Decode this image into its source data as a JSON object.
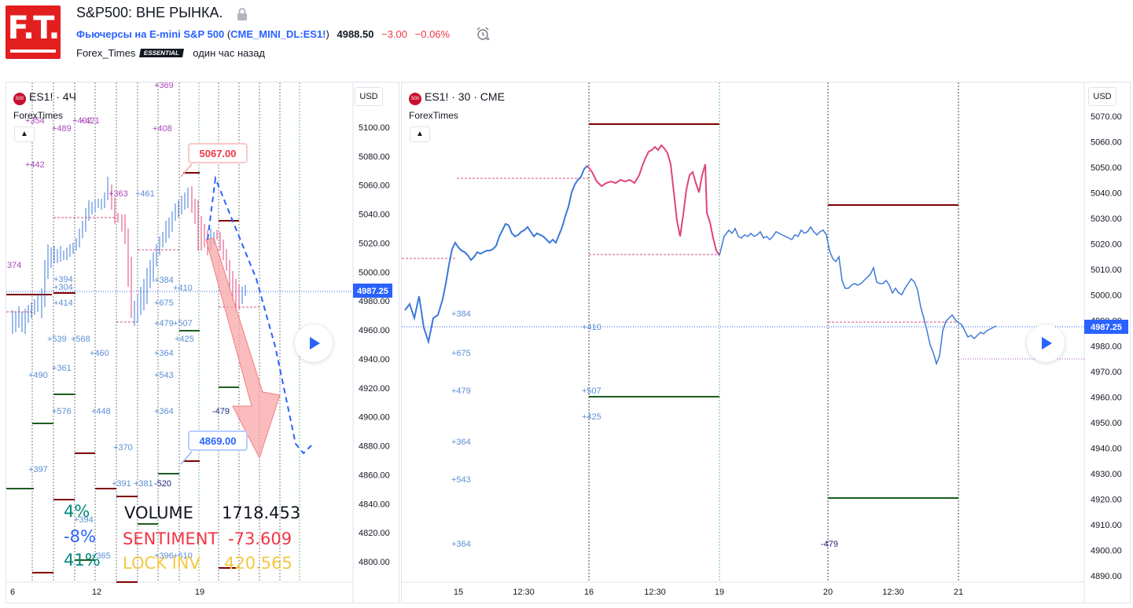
{
  "header": {
    "logo_text": "F.T.",
    "title": "S&P500: ВНЕ РЫНКА.",
    "instrument_name": "Фьючерсы на E-mini S&P 500",
    "ticker_open": "(",
    "ticker": "CME_MINI_DL:ES1!",
    "ticker_close": ")",
    "price": "4988.50",
    "change": "−3.00",
    "change_pct": "−0.06%",
    "author": "Forex_Times",
    "author_badge": "ESSENTIAL",
    "published": "один час назад"
  },
  "left_chart": {
    "symbol_icon": "500",
    "symbol": "ES1! · 4Ч",
    "indicator": "ForexTimes",
    "currency": "USD",
    "collapse_icon": "chevron-up-icon",
    "current_price": "4987.25",
    "price_labels": [
      "5100.00",
      "5080.00",
      "5060.00",
      "5040.00",
      "5020.00",
      "5000.00",
      "4980.00",
      "4960.00",
      "4940.00",
      "4920.00",
      "4900.00",
      "4880.00",
      "4860.00",
      "4840.00",
      "4820.00",
      "4800.00"
    ],
    "time_labels": [
      "6",
      "12",
      "19"
    ],
    "target_up": "5067.00",
    "target_down": "4869.00",
    "annotations": [
      "+369",
      "+354",
      "+489",
      "+402",
      "+421",
      "+408",
      "+442",
      "+363",
      "+461",
      "374",
      "+394",
      "+304",
      "+414",
      "+384",
      "+675",
      "+410",
      "+479",
      "+507",
      "+425",
      "+539",
      "+568",
      "+460",
      "+364",
      "+490",
      "+361",
      "+543",
      "+576",
      "+448",
      "+364",
      "-479",
      "+370",
      "+397",
      "+391",
      "+381",
      "-520",
      "+396",
      "+610",
      "+365",
      "+394"
    ],
    "stats": [
      {
        "pct": "4%",
        "label": "VOLUME",
        "value": "1718.453",
        "color": "#131722",
        "pct_color": "#00897b"
      },
      {
        "pct": "-8%",
        "label": "SENTIMENT",
        "value": "-73.609",
        "color": "#f23645",
        "pct_color": "#2962ff"
      },
      {
        "pct": "41%",
        "label": "LOCK INV",
        "value": "420.565",
        "color": "#f5c842",
        "pct_color": "#00897b"
      }
    ]
  },
  "right_chart": {
    "symbol_icon": "500",
    "symbol": "ES1! · 30 · CME",
    "indicator": "ForexTimes",
    "currency": "USD",
    "collapse_icon": "chevron-up-icon",
    "current_price": "4987.25",
    "price_labels": [
      "5070.00",
      "5060.00",
      "5050.00",
      "5040.00",
      "5030.00",
      "5020.00",
      "5010.00",
      "5000.00",
      "4990.00",
      "4980.00",
      "4970.00",
      "4960.00",
      "4950.00",
      "4940.00",
      "4930.00",
      "4920.00",
      "4910.00",
      "4900.00",
      "4890.00"
    ],
    "time_labels": [
      "15",
      "12:30",
      "16",
      "12:30",
      "19",
      "20",
      "12:30",
      "21"
    ],
    "annotations": [
      "+384",
      "+675",
      "+479",
      "+364",
      "+543",
      "+364",
      "+410",
      "+507",
      "+425",
      "-479"
    ]
  },
  "icons": {
    "lock": "lock-icon",
    "alarm": "alarm-clock-icon",
    "play": "play-icon"
  }
}
